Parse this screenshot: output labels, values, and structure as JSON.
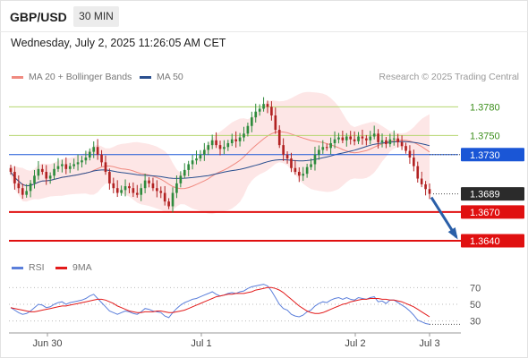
{
  "header": {
    "symbol": "GBP/USD",
    "timeframe": "30 MIN",
    "datetime": "Wednesday, July 2, 2025 11:26:05 AM CET"
  },
  "legend": {
    "ma20_label": "MA 20 + Bollinger Bands",
    "ma50_label": "MA 50",
    "rsi_label": "RSI",
    "ma9_label": "9MA",
    "credit": "Research © 2025 Trading Central"
  },
  "colors": {
    "up_candle": "#2e8b3d",
    "down_candle": "#b22222",
    "bollinger_fill": "#fcdcdc",
    "ma20": "#f08a80",
    "ma50": "#2a4f8f",
    "rsi": "#5b7fdb",
    "rsi_ma9": "#e31b1b",
    "resistance": "#b5d66f",
    "support": "#e01010",
    "pivot": "#1a56d6",
    "arrow": "#2a5fa8"
  },
  "chart_data": {
    "type": "candlestick",
    "x_ticks": [
      "Jun 30",
      "Jul 1",
      "Jul 2",
      "Jul 3"
    ],
    "y_range": [
      1.3625,
      1.38
    ],
    "current_price": 1.3689,
    "levels": [
      {
        "value": 1.378,
        "label": "1.3780",
        "role": "resistance"
      },
      {
        "value": 1.375,
        "label": "1.3750",
        "role": "resistance"
      },
      {
        "value": 1.373,
        "label": "1.3730",
        "role": "pivot"
      },
      {
        "value": 1.3689,
        "label": "1.3689",
        "role": "last"
      },
      {
        "value": 1.367,
        "label": "1.3670",
        "role": "support"
      },
      {
        "value": 1.364,
        "label": "1.3640",
        "role": "support"
      }
    ],
    "close": [
      1.3712,
      1.37,
      1.3695,
      1.3688,
      1.3692,
      1.37,
      1.3708,
      1.3715,
      1.3712,
      1.3705,
      1.3708,
      1.3715,
      1.3718,
      1.372,
      1.3715,
      1.3718,
      1.372,
      1.3722,
      1.3724,
      1.3727,
      1.3733,
      1.3738,
      1.373,
      1.3722,
      1.3712,
      1.37,
      1.3695,
      1.369,
      1.3693,
      1.3697,
      1.3695,
      1.369,
      1.3688,
      1.3695,
      1.3703,
      1.37,
      1.3695,
      1.3692,
      1.369,
      1.3681,
      1.3676,
      1.369,
      1.37,
      1.3708,
      1.3714,
      1.372,
      1.3724,
      1.3726,
      1.373,
      1.3735,
      1.374,
      1.3745,
      1.374,
      1.3736,
      1.3738,
      1.3742,
      1.3746,
      1.3744,
      1.3748,
      1.3752,
      1.376,
      1.3769,
      1.3775,
      1.3778,
      1.3783,
      1.378,
      1.3771,
      1.3756,
      1.374,
      1.373,
      1.3726,
      1.3716,
      1.3712,
      1.3708,
      1.371,
      1.3717,
      1.372,
      1.373,
      1.3735,
      1.3738,
      1.3737,
      1.3742,
      1.3746,
      1.3748,
      1.3745,
      1.3749,
      1.3746,
      1.3744,
      1.3749,
      1.3747,
      1.3745,
      1.3749,
      1.3752,
      1.3743,
      1.3745,
      1.3741,
      1.3746,
      1.3747,
      1.3743,
      1.3739,
      1.3734,
      1.3727,
      1.3718,
      1.3705,
      1.3699,
      1.3694,
      1.3689
    ],
    "rsi": {
      "ticks": [
        70,
        50,
        30
      ],
      "range": [
        20,
        80
      ],
      "values": [
        46,
        43,
        40,
        38,
        39,
        42,
        46,
        50,
        49,
        46,
        47,
        50,
        52,
        53,
        50,
        52,
        53,
        54,
        55,
        57,
        60,
        62,
        57,
        52,
        47,
        42,
        40,
        38,
        40,
        42,
        41,
        39,
        38,
        41,
        45,
        44,
        42,
        41,
        40,
        36,
        34,
        40,
        45,
        49,
        52,
        54,
        56,
        57,
        59,
        61,
        63,
        65,
        62,
        60,
        61,
        63,
        64,
        63,
        65,
        66,
        69,
        71,
        72,
        73,
        74,
        72,
        66,
        58,
        50,
        45,
        43,
        38,
        36,
        35,
        37,
        41,
        43,
        48,
        51,
        53,
        52,
        55,
        57,
        58,
        56,
        58,
        56,
        55,
        58,
        57,
        56,
        58,
        59,
        53,
        54,
        51,
        55,
        55,
        52,
        49,
        46,
        42,
        37,
        31,
        29,
        27,
        26
      ],
      "ma9": [
        46,
        45,
        44,
        43,
        42,
        41,
        41,
        42,
        43,
        44,
        45,
        46,
        47,
        48,
        48,
        49,
        50,
        51,
        52,
        53,
        54,
        55,
        56,
        56,
        55,
        53,
        51,
        48,
        46,
        44,
        42,
        41,
        40,
        40,
        41,
        41,
        41,
        42,
        42,
        41,
        40,
        40,
        41,
        42,
        43,
        45,
        47,
        49,
        51,
        53,
        55,
        57,
        59,
        60,
        61,
        62,
        62,
        63,
        63,
        63,
        64,
        65,
        67,
        68,
        69,
        70,
        70,
        69,
        67,
        64,
        60,
        56,
        52,
        48,
        45,
        42,
        40,
        39,
        39,
        40,
        42,
        44,
        46,
        48,
        50,
        51,
        53,
        54,
        55,
        56,
        56,
        57,
        57,
        57,
        56,
        56,
        55,
        55,
        54,
        53,
        51,
        49,
        47,
        44,
        41,
        38,
        35
      ]
    }
  }
}
